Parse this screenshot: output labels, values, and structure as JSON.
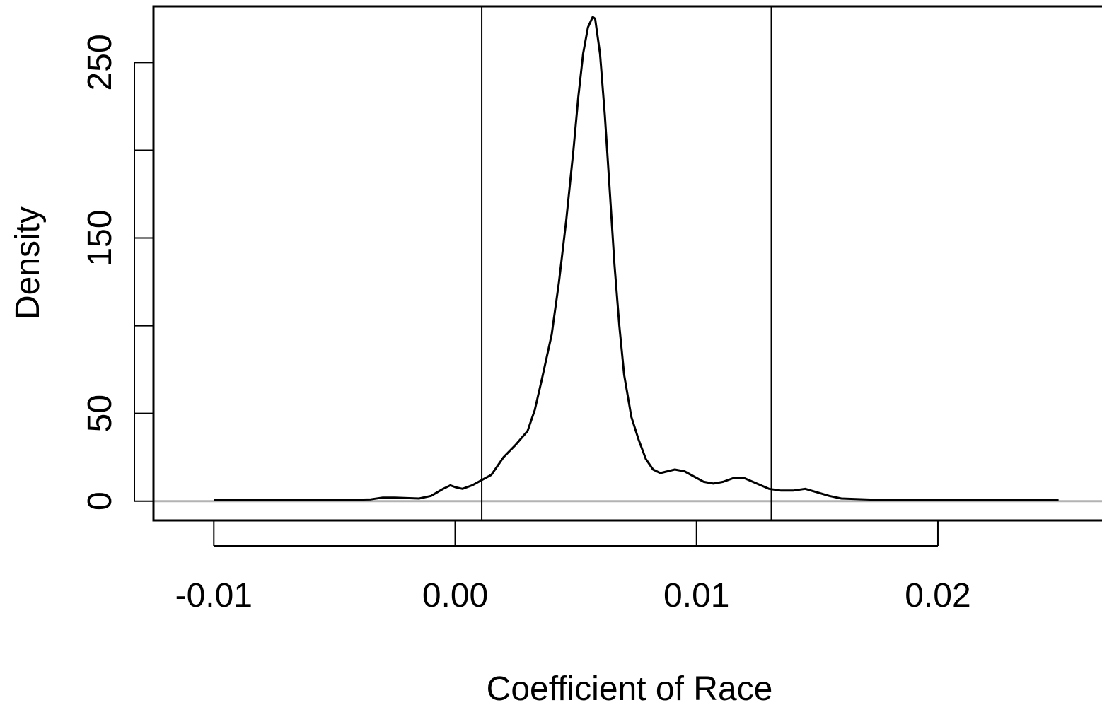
{
  "chart_data": {
    "type": "line",
    "title": "",
    "xlabel": "Coefficient of Race",
    "ylabel": "Density",
    "xlim": [
      -0.0125,
      0.0268
    ],
    "ylim": [
      -11,
      282
    ],
    "x_ticks": [
      -0.01,
      0.0,
      0.01,
      0.02
    ],
    "x_tick_labels": [
      "-0.01",
      "0.00",
      "0.01",
      "0.02"
    ],
    "y_ticks": [
      0,
      50,
      100,
      150,
      200,
      250
    ],
    "y_tick_labels": [
      "0",
      "50",
      "",
      "150",
      "",
      "250"
    ],
    "grid": false,
    "legend": "none",
    "baseline": {
      "y": 0,
      "color": "#b3b3b3"
    },
    "vertical_lines": [
      0.0011,
      0.0131
    ],
    "series": [
      {
        "line_color": "#000000",
        "x": [
          -0.01,
          -0.0075,
          -0.005,
          -0.0035,
          -0.003,
          -0.0025,
          -0.0015,
          -0.001,
          -0.0005,
          -0.0002,
          0.0,
          0.0003,
          0.0007,
          0.0011,
          0.0015,
          0.002,
          0.0025,
          0.003,
          0.0033,
          0.0036,
          0.004,
          0.0043,
          0.0046,
          0.0049,
          0.0051,
          0.0053,
          0.0055,
          0.0057,
          0.0058,
          0.006,
          0.0062,
          0.0064,
          0.0066,
          0.0068,
          0.007,
          0.0073,
          0.0076,
          0.0079,
          0.0082,
          0.0085,
          0.0088,
          0.0091,
          0.0095,
          0.0099,
          0.0103,
          0.0107,
          0.0111,
          0.0115,
          0.012,
          0.0125,
          0.013,
          0.0135,
          0.014,
          0.0145,
          0.015,
          0.0155,
          0.016,
          0.017,
          0.018,
          0.02,
          0.022,
          0.025
        ],
        "y": [
          0.5,
          0.5,
          0.5,
          1,
          2,
          2,
          1.5,
          3,
          7,
          9,
          8,
          7,
          9,
          12,
          15,
          25,
          32,
          40,
          52,
          70,
          95,
          125,
          160,
          200,
          230,
          255,
          270,
          276,
          275,
          255,
          220,
          178,
          135,
          100,
          72,
          48,
          35,
          24,
          18,
          16,
          17,
          18,
          17,
          14,
          11,
          10,
          11,
          13,
          13,
          10,
          7,
          6,
          6,
          7,
          5,
          3,
          1.5,
          1,
          0.5,
          0.5,
          0.5,
          0.5
        ]
      }
    ]
  }
}
